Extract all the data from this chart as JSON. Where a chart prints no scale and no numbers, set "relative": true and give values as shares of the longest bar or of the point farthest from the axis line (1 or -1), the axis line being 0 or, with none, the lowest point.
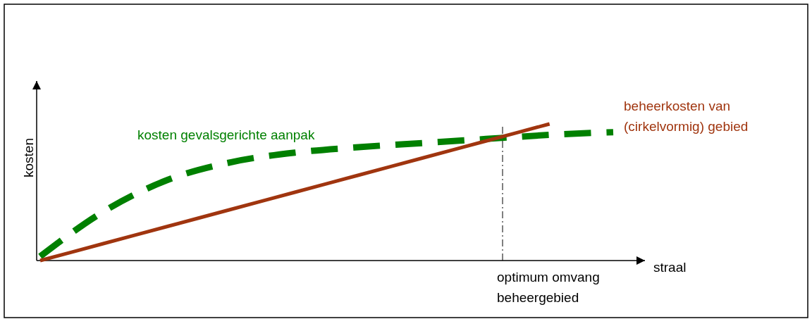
{
  "chart_data": {
    "type": "line",
    "relative": true,
    "xlabel": "straal",
    "ylabel": "kosten",
    "categories": [
      null,
      null,
      null,
      null,
      null,
      null,
      null,
      null,
      null,
      null
    ],
    "series": [
      {
        "name": "kosten gevalsgerichte aanpak",
        "color": "#008000",
        "line_style": "dashed",
        "values": [
          0.03,
          0.36,
          0.59,
          0.72,
          0.79,
          0.83,
          0.86,
          0.89,
          0.92,
          0.94
        ]
      },
      {
        "name": "beheerkosten van (cirkelvormig) gebied",
        "color": "#a0350f",
        "line_style": "solid",
        "values": [
          0,
          0.125,
          0.25,
          0.375,
          0.5,
          0.625,
          0.75,
          0.875,
          1,
          null
        ]
      }
    ],
    "annotations": [
      "optimum omvang beheergebied"
    ],
    "marker": "none"
  }
}
